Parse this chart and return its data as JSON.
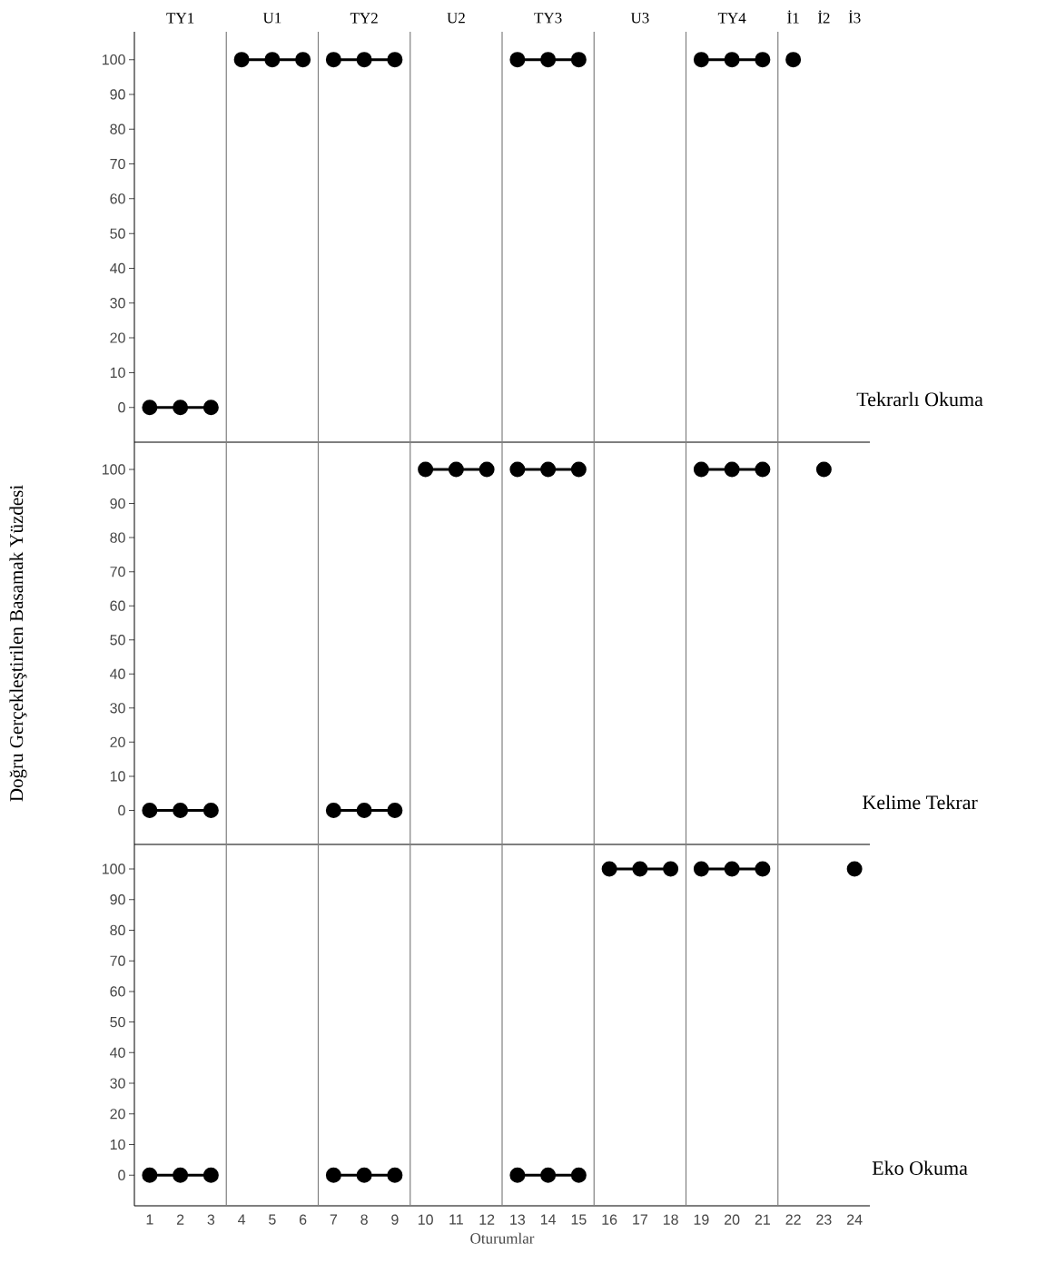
{
  "chart_data": [
    {
      "type": "line",
      "marker": "circle",
      "line_style": "solid",
      "xlim": [
        0.5,
        24.5
      ],
      "ylim": [
        -10,
        108
      ],
      "xticks": [
        1,
        2,
        3,
        4,
        5,
        6,
        7,
        8,
        9,
        10,
        11,
        12,
        13,
        14,
        15,
        16,
        17,
        18,
        19,
        20,
        21,
        22,
        23,
        24
      ],
      "yticks": [
        0,
        10,
        20,
        30,
        40,
        50,
        60,
        70,
        80,
        90,
        100
      ],
      "tick_labels": "y",
      "series": [
        {
          "color": "#000000",
          "x": [
            1,
            2,
            3
          ],
          "values": [
            0,
            0,
            0
          ]
        },
        {
          "color": "#000000",
          "x": [
            4,
            5,
            6
          ],
          "values": [
            100,
            100,
            100
          ]
        },
        {
          "color": "#000000",
          "x": [
            7,
            8,
            9
          ],
          "values": [
            100,
            100,
            100
          ]
        },
        {
          "color": "#000000",
          "x": [
            13,
            14,
            15
          ],
          "values": [
            100,
            100,
            100
          ]
        },
        {
          "color": "#000000",
          "x": [
            19,
            20,
            21
          ],
          "values": [
            100,
            100,
            100
          ]
        },
        {
          "color": "#000000",
          "x": [
            22
          ],
          "values": [
            100
          ]
        }
      ],
      "ref_lines": [
        {
          "axis": "x",
          "value": 3.5
        },
        {
          "axis": "x",
          "value": 6.5
        },
        {
          "axis": "x",
          "value": 9.5
        },
        {
          "axis": "x",
          "value": 12.5
        },
        {
          "axis": "x",
          "value": 15.5
        },
        {
          "axis": "x",
          "value": 18.5
        },
        {
          "axis": "x",
          "value": 21.5
        }
      ],
      "title": "Tekrarlı Okuma",
      "annotations": [
        "TY1",
        "U1",
        "TY2",
        "U2",
        "TY3",
        "U3",
        "TY4",
        "İ1",
        "İ2",
        "İ3"
      ]
    },
    {
      "type": "line",
      "marker": "circle",
      "line_style": "solid",
      "xlim": [
        0.5,
        24.5
      ],
      "ylim": [
        -10,
        108
      ],
      "xticks": [
        1,
        2,
        3,
        4,
        5,
        6,
        7,
        8,
        9,
        10,
        11,
        12,
        13,
        14,
        15,
        16,
        17,
        18,
        19,
        20,
        21,
        22,
        23,
        24
      ],
      "yticks": [
        0,
        10,
        20,
        30,
        40,
        50,
        60,
        70,
        80,
        90,
        100
      ],
      "tick_labels": "y",
      "ylabel": "Doğru Gerçekleştirilen Basamak Yüzdesi",
      "series": [
        {
          "color": "#000000",
          "x": [
            1,
            2,
            3
          ],
          "values": [
            0,
            0,
            0
          ]
        },
        {
          "color": "#000000",
          "x": [
            7,
            8,
            9
          ],
          "values": [
            0,
            0,
            0
          ]
        },
        {
          "color": "#000000",
          "x": [
            10,
            11,
            12
          ],
          "values": [
            100,
            100,
            100
          ]
        },
        {
          "color": "#000000",
          "x": [
            13,
            14,
            15
          ],
          "values": [
            100,
            100,
            100
          ]
        },
        {
          "color": "#000000",
          "x": [
            19,
            20,
            21
          ],
          "values": [
            100,
            100,
            100
          ]
        },
        {
          "color": "#000000",
          "x": [
            23
          ],
          "values": [
            100
          ]
        }
      ],
      "ref_lines": [
        {
          "axis": "x",
          "value": 3.5
        },
        {
          "axis": "x",
          "value": 6.5
        },
        {
          "axis": "x",
          "value": 9.5
        },
        {
          "axis": "x",
          "value": 12.5
        },
        {
          "axis": "x",
          "value": 15.5
        },
        {
          "axis": "x",
          "value": 18.5
        },
        {
          "axis": "x",
          "value": 21.5
        }
      ],
      "title": "Kelime Tekrar"
    },
    {
      "type": "line",
      "marker": "circle",
      "line_style": "solid",
      "xlim": [
        0.5,
        24.5
      ],
      "ylim": [
        -10,
        108
      ],
      "xticks": [
        1,
        2,
        3,
        4,
        5,
        6,
        7,
        8,
        9,
        10,
        11,
        12,
        13,
        14,
        15,
        16,
        17,
        18,
        19,
        20,
        21,
        22,
        23,
        24
      ],
      "yticks": [
        0,
        10,
        20,
        30,
        40,
        50,
        60,
        70,
        80,
        90,
        100
      ],
      "xlabel": "Oturumlar",
      "series": [
        {
          "color": "#000000",
          "x": [
            1,
            2,
            3
          ],
          "values": [
            0,
            0,
            0
          ]
        },
        {
          "color": "#000000",
          "x": [
            7,
            8,
            9
          ],
          "values": [
            0,
            0,
            0
          ]
        },
        {
          "color": "#000000",
          "x": [
            13,
            14,
            15
          ],
          "values": [
            0,
            0,
            0
          ]
        },
        {
          "color": "#000000",
          "x": [
            16,
            17,
            18
          ],
          "values": [
            100,
            100,
            100
          ]
        },
        {
          "color": "#000000",
          "x": [
            19,
            20,
            21
          ],
          "values": [
            100,
            100,
            100
          ]
        },
        {
          "color": "#000000",
          "x": [
            24
          ],
          "values": [
            100
          ]
        }
      ],
      "ref_lines": [
        {
          "axis": "x",
          "value": 3.5
        },
        {
          "axis": "x",
          "value": 6.5
        },
        {
          "axis": "x",
          "value": 9.5
        },
        {
          "axis": "x",
          "value": 12.5
        },
        {
          "axis": "x",
          "value": 15.5
        },
        {
          "axis": "x",
          "value": 18.5
        },
        {
          "axis": "x",
          "value": 21.5
        }
      ],
      "title": "Eko Okuma"
    }
  ]
}
